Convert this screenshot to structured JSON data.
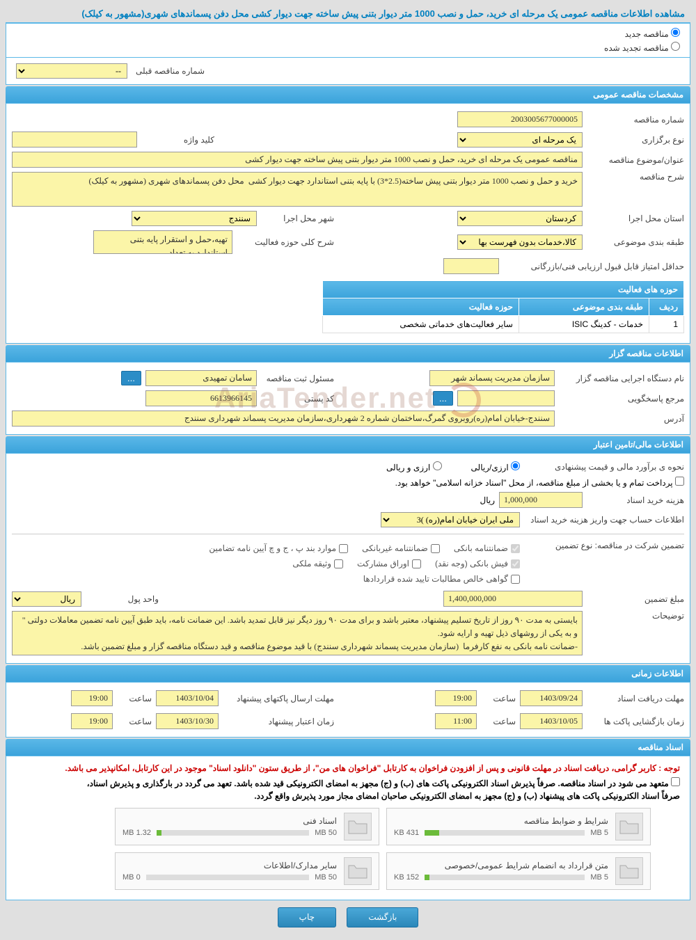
{
  "page_title": "مشاهده اطلاعات مناقصه عمومی یک مرحله ای خرید، حمل و نصب 1000 متر دیوار بتنی پیش ساخته جهت دیوار کشی محل دفن پسماندهای شهری(مشهور به کیلک)",
  "radio_options": {
    "new": "مناقصه جدید",
    "extended": "مناقصه تجدید شده"
  },
  "prev_tender": {
    "label": "شماره مناقصه قبلی",
    "value": "--"
  },
  "section_titles": {
    "general": "مشخصات مناقصه عمومی",
    "owner": "اطلاعات مناقصه گزار",
    "financial": "اطلاعات مالی/تامین اعتبار",
    "timing": "اطلاعات زمانی",
    "documents": "اسناد مناقصه"
  },
  "general": {
    "tender_no_label": "شماره مناقصه",
    "tender_no": "2003005677000005",
    "type_label": "نوع برگزاری",
    "type": "یک مرحله ای",
    "keyword_label": "کلید واژه",
    "keyword": "",
    "subject_label": "عنوان/موضوع مناقصه",
    "subject": "مناقصه عمومی یک مرحله ای خرید، حمل و نصب 1000 متر دیوار بتنی پیش ساخته جهت دیوار کشی",
    "desc_label": "شرح مناقصه",
    "desc": "خرید و حمل و نصب 1000 متر دیوار بتنی پیش ساخته(2.5*3) با پایه بتنی استاندارد جهت دیوار کشی  محل دفن پسماندهای شهری (مشهور به کیلک)",
    "province_label": "استان محل اجرا",
    "province": "کردستان",
    "city_label": "شهر محل اجرا",
    "city": "سنندج",
    "cat_label": "طبقه بندی موضوعی",
    "cat": "کالا،خدمات بدون فهرست بها",
    "activity_scope_label": "شرح کلی حوزه فعالیت",
    "activity_scope": "تهیه،حمل و استقرار پایه بتنی استاندارد به تعداد",
    "min_score_label": "حداقل امتیاز قابل قبول ارزیابی فنی/بازرگانی",
    "min_score": ""
  },
  "activity_table": {
    "title": "حوزه های فعالیت",
    "col_row": "ردیف",
    "col_cat": "طبقه بندی موضوعی",
    "col_activity": "حوزه فعالیت",
    "row1_idx": "1",
    "row1_cat": "خدمات - کدینگ ISIC",
    "row1_activity": "سایر فعالیت‌های خدماتی شخصی"
  },
  "owner": {
    "org_label": "نام دستگاه اجرایی مناقصه گزار",
    "org": "سازمان مدیریت پسماند شهر",
    "reg_mgr_label": "مسئول ثبت مناقصه",
    "reg_mgr": "سامان تمهیدی",
    "resp_label": "مرجع پاسخگویی",
    "resp": "",
    "postal_label": "کد پستی",
    "postal": "6613966145",
    "address_label": "آدرس",
    "address": "سنندج-خیابان امام(ره)روبروی گمرگ،ساختمان شماره 2 شهرداری،سازمان مدیریت پسماند شهرداری سنندج"
  },
  "financial": {
    "estimate_label": "نحوه ی برآورد مالی و قیمت پیشنهادی",
    "currency_opt1": "ارزی/ریالی",
    "currency_opt2": "ارزی و ریالی",
    "payment_note": "پرداخت تمام و یا بخشی از مبلغ مناقصه، از محل \"اسناد خزانه اسلامی\" خواهد بود.",
    "doc_cost_label": "هزینه خرید اسناد",
    "doc_cost": "1,000,000",
    "rial": "ریال",
    "account_label": "اطلاعات حساب جهت واریز هزینه خرید اسناد",
    "account": "ملی ایران خیابان امام(ره) )3",
    "guarantee_type_label": "تضمین شرکت در مناقصه:   نوع تضمین",
    "chk1": "ضمانتنامه بانکی",
    "chk2": "ضمانتنامه غیربانکی",
    "chk3": "موارد بند پ ، ج و چ آیین نامه تضامین",
    "chk4": "فیش بانکی (وجه نقد)",
    "chk5": "اوراق مشارکت",
    "chk6": "وثیقه ملکی",
    "chk7": "گواهی خالص مطالبات تایید شده قراردادها",
    "guarantee_amount_label": "مبلغ تضمین",
    "guarantee_amount": "1,400,000,000",
    "unit_label": "واحد پول",
    "unit": "ریال",
    "remarks_label": "توضیحات",
    "remarks": "بایستی به مدت ۹۰ روز از تاریخ تسلیم پیشنهاد، معتبر باشد و برای مدت ۹۰ روز دیگر نیز قابل تمدید باشد. این ضمانت نامه، باید طبق آیین نامه تضمین معاملات دولتی \" و به یکی از روشهای ذیل تهیه و ارایه شود.\n-ضمانت نامه بانکی به نفع کارفرما  (سازمان مدیریت پسماند شهرداری سنندج) با قید موضوع مناقصه و قید دستگاه مناقصه گزار و مبلغ تضمین باشد."
  },
  "timing": {
    "doc_receive_label": "مهلت دریافت اسناد",
    "doc_receive_date": "1403/09/24",
    "hour_label": "ساعت",
    "doc_receive_time": "19:00",
    "envelope_send_label": "مهلت ارسال پاکتهای پیشنهاد",
    "envelope_send_date": "1403/10/04",
    "envelope_send_time": "19:00",
    "open_label": "زمان بازگشایی پاکت ها",
    "open_date": "1403/10/05",
    "open_time": "11:00",
    "validity_label": "زمان اعتبار پیشنهاد",
    "validity_date": "1403/10/30",
    "validity_time": "19:00"
  },
  "documents": {
    "warning1": "توجه : کاربر گرامی، دریافت اسناد در مهلت قانونی و پس از افزودن فراخوان به کارتابل \"فراخوان های من\"، از طریق ستون \"دانلود اسناد\" موجود در این کارتابل، امکانپذیر می باشد.",
    "warning2": "متعهد می شود در اسناد مناقصه. صرفاً پذیرش اسناد الکترونیکی پاکت های (ب) و (ج) مجهز به امضای الکترونیکی قید شده باشد. تعهد می گردد در بارگذاری و پذیرش اسناد،",
    "warning3": "صرفاً اسناد الکترونیکی پاکت های پیشنهاد (ب) و (ج) مجهز به امضای الکترونیکی صاحبان امضای مجاز مورد پذیرش واقع گردد.",
    "files": [
      {
        "name": "شرایط و ضوابط مناقصه",
        "size": "431 KB",
        "max": "5 MB",
        "pct": 9
      },
      {
        "name": "اسناد فنی",
        "size": "1.32 MB",
        "max": "50 MB",
        "pct": 3
      },
      {
        "name": "متن قرارداد به انضمام شرایط عمومی/خصوصی",
        "size": "152 KB",
        "max": "5 MB",
        "pct": 3
      },
      {
        "name": "سایر مدارک/اطلاعات",
        "size": "0 MB",
        "max": "50 MB",
        "pct": 0
      }
    ]
  },
  "buttons": {
    "back": "بازگشت",
    "print": "چاپ",
    "ellipsis": "..."
  },
  "watermark": "AriaTender.net"
}
